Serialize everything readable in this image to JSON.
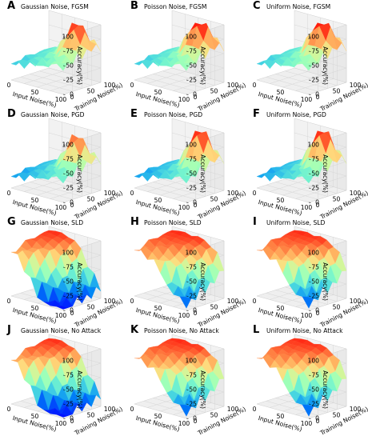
{
  "chart_data": {
    "type": "surface3d",
    "xlabel": "Input Noise(%)",
    "ylabel": "Training Noise(%)",
    "zlabel": "Accuracy(%)",
    "x_ticks": [
      "0",
      "50",
      "100"
    ],
    "y_ticks": [
      "0",
      "50",
      "100"
    ],
    "z_ticks": [
      "0",
      "25",
      "50",
      "75",
      "100"
    ],
    "xlim": [
      0,
      100
    ],
    "ylim": [
      0,
      100
    ],
    "zlim": [
      0,
      100
    ],
    "grid": true,
    "colormap": "rainbow",
    "panels": [
      {
        "letter": "A",
        "title": "Gaussian Noise, FGSM",
        "noise": "gaussian",
        "attack": "fgsm"
      },
      {
        "letter": "B",
        "title": "Poisson Noise, FGSM",
        "noise": "poisson",
        "attack": "fgsm"
      },
      {
        "letter": "C",
        "title": "Uniform Noise, FGSM",
        "noise": "uniform",
        "attack": "fgsm"
      },
      {
        "letter": "D",
        "title": "Gaussian Noise, PGD",
        "noise": "gaussian",
        "attack": "pgd"
      },
      {
        "letter": "E",
        "title": "Poisson Noise, PGD",
        "noise": "poisson",
        "attack": "pgd"
      },
      {
        "letter": "F",
        "title": "Uniform Noise, PGD",
        "noise": "uniform",
        "attack": "pgd"
      },
      {
        "letter": "G",
        "title": "Gaussian Noise, SLD",
        "noise": "gaussian",
        "attack": "sld"
      },
      {
        "letter": "H",
        "title": "Poisson Noise, SLD",
        "noise": "poisson",
        "attack": "sld"
      },
      {
        "letter": "I",
        "title": "Uniform Noise, SLD",
        "noise": "uniform",
        "attack": "sld"
      },
      {
        "letter": "J",
        "title": "Gaussian Noise, No Attack",
        "noise": "gaussian",
        "attack": "none"
      },
      {
        "letter": "K",
        "title": "Poisson Noise, No Attack",
        "noise": "poisson",
        "attack": "none"
      },
      {
        "letter": "L",
        "title": "Uniform Noise, No Attack",
        "noise": "uniform",
        "attack": "none"
      }
    ]
  }
}
